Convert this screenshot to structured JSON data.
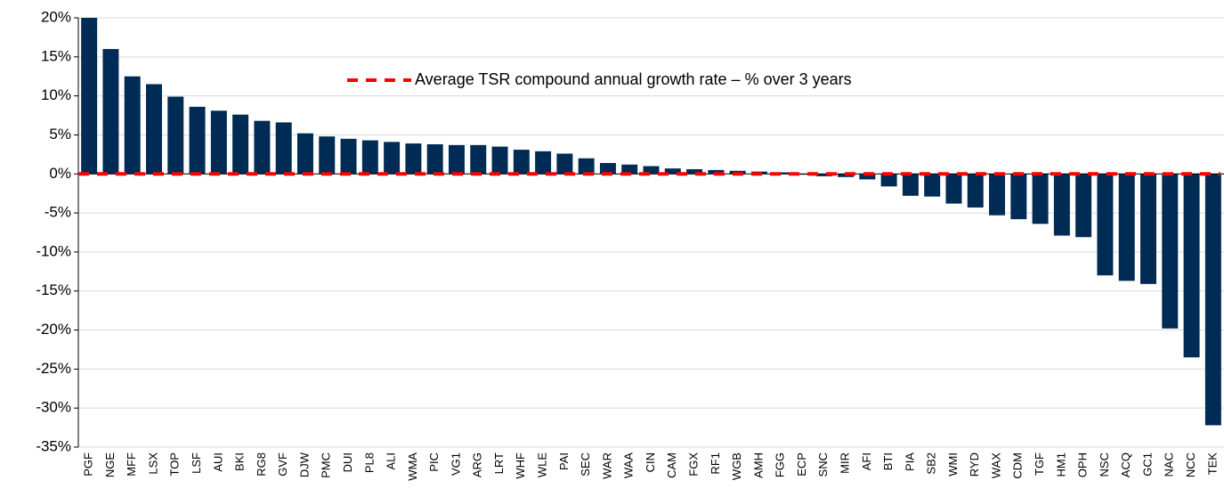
{
  "chart_data": {
    "type": "bar",
    "categories": [
      "PGF",
      "NGE",
      "MFF",
      "LSX",
      "TOP",
      "LSF",
      "AUI",
      "BKI",
      "RG8",
      "GVF",
      "DJW",
      "PMC",
      "DUI",
      "PL8",
      "ALI",
      "WMA",
      "PIC",
      "VG1",
      "ARG",
      "LRT",
      "WHF",
      "WLE",
      "PAI",
      "SEC",
      "WAR",
      "WAA",
      "CIN",
      "CAM",
      "FGX",
      "RF1",
      "WGB",
      "AMH",
      "FGG",
      "ECP",
      "SNC",
      "MIR",
      "AFI",
      "BTI",
      "PIA",
      "SB2",
      "WMI",
      "RYD",
      "WAX",
      "CDM",
      "TGF",
      "HM1",
      "OPH",
      "NSC",
      "ACQ",
      "GC1",
      "NAC",
      "NCC",
      "TEK"
    ],
    "values": [
      20,
      16,
      12.5,
      11.5,
      9.9,
      8.6,
      8.1,
      7.6,
      6.8,
      6.6,
      5.2,
      4.8,
      4.5,
      4.3,
      4.1,
      3.9,
      3.8,
      3.7,
      3.7,
      3.5,
      3.1,
      2.9,
      2.6,
      2.0,
      1.4,
      1.2,
      1.0,
      0.7,
      0.6,
      0.5,
      0.4,
      0.3,
      0.2,
      -0.1,
      -0.3,
      -0.4,
      -0.7,
      -1.6,
      -2.8,
      -2.9,
      -3.8,
      -4.3,
      -5.3,
      -5.8,
      -6.4,
      -7.9,
      -8.1,
      -13,
      -13.7,
      -14.1,
      -19.8,
      -23.5,
      -32.2
    ],
    "color": "#002b54",
    "average": {
      "name": "Average TSR compound annual growth rate – % over 3 years",
      "value": 0,
      "color": "#ff0000"
    },
    "ylim": [
      -35,
      20
    ],
    "yticks": [
      {
        "value": -35,
        "label": "-35%"
      },
      {
        "value": -30,
        "label": "-30%"
      },
      {
        "value": -25,
        "label": "-25%"
      },
      {
        "value": -20,
        "label": "-20%"
      },
      {
        "value": -15,
        "label": "-15%"
      },
      {
        "value": -10,
        "label": "-10%"
      },
      {
        "value": -5,
        "label": "-5%"
      },
      {
        "value": 0,
        "label": "0%"
      },
      {
        "value": 5,
        "label": "5%"
      },
      {
        "value": 10,
        "label": "10%"
      },
      {
        "value": 15,
        "label": "15%"
      },
      {
        "value": 20,
        "label": "20%"
      }
    ],
    "grid": true
  }
}
